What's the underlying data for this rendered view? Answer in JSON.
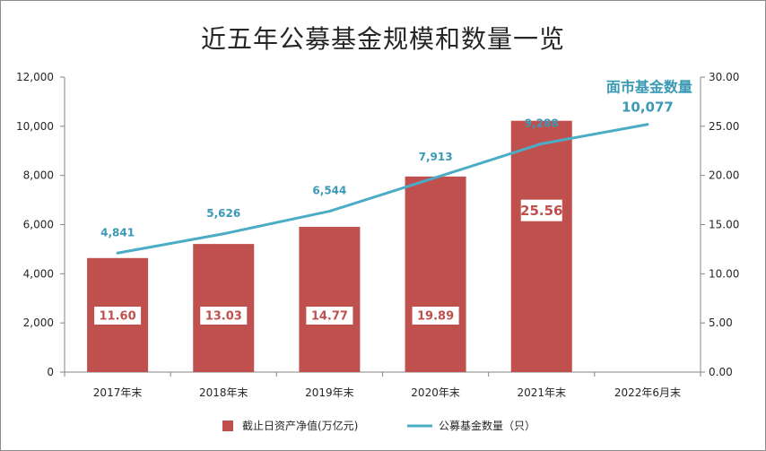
{
  "chart_data": {
    "type": "bar+line",
    "title": "近五年公募基金规模和数量一览",
    "categories": [
      "2017年末",
      "2018年末",
      "2019年末",
      "2020年末",
      "2021年末",
      "2022年6月末"
    ],
    "bar_series": {
      "name": "截止日资产净值(万亿元)",
      "axis": "right",
      "values": [
        11.6,
        13.03,
        14.77,
        19.89,
        25.56,
        null
      ],
      "labels": [
        "11.60",
        "13.03",
        "14.77",
        "19.89",
        "25.56",
        ""
      ],
      "color": "#c0504d"
    },
    "line_series": {
      "name": "公募基金数量（只）",
      "axis": "left",
      "values": [
        4841,
        5626,
        6544,
        7913,
        9288,
        10077
      ],
      "labels": [
        "4,841",
        "5,626",
        "6,544",
        "7,913",
        "9,288",
        "10,077"
      ],
      "color": "#4bacc6"
    },
    "left_axis": {
      "min": 0,
      "max": 12000,
      "ticks": [
        "0",
        "2,000",
        "4,000",
        "6,000",
        "8,000",
        "10,000",
        "12,000"
      ]
    },
    "right_axis": {
      "min": 0,
      "max": 30,
      "ticks": [
        "0.00",
        "5.00",
        "10.00",
        "15.00",
        "20.00",
        "25.00",
        "30.00"
      ]
    },
    "annotation": "面市基金数量",
    "legend_position": "bottom",
    "grid": false
  }
}
